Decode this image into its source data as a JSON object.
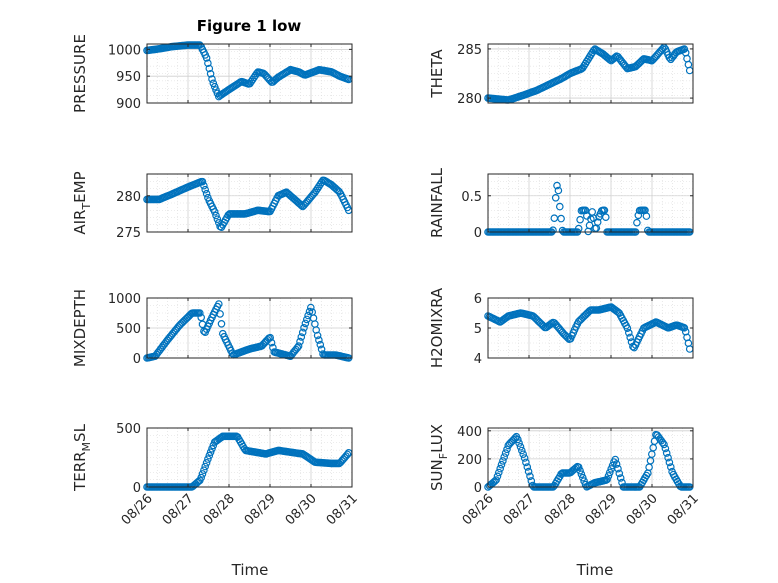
{
  "figure": {
    "title": "Figure 1 low",
    "xlabel": "Time",
    "x_tick_labels": [
      "08/26",
      "08/27",
      "08/28",
      "08/29",
      "08/30",
      "08/31"
    ],
    "marker_color": "#0072bd",
    "axes_color": "#262626",
    "grid_color": "#cfcfcf"
  },
  "chart_data": [
    {
      "type": "scatter",
      "name": "pressure",
      "ylabel": "PRESSURE",
      "ylabel_sub": "",
      "xlim": [
        0,
        5
      ],
      "ylim": [
        900,
        1010
      ],
      "yticks": [
        900,
        950,
        1000
      ],
      "x_start": 0,
      "x_end": 4.92,
      "knots": [
        [
          0,
          998
        ],
        [
          0.3,
          1001
        ],
        [
          0.6,
          1005
        ],
        [
          1.0,
          1008
        ],
        [
          1.3,
          1008
        ],
        [
          1.45,
          985
        ],
        [
          1.6,
          940
        ],
        [
          1.75,
          912
        ],
        [
          1.9,
          920
        ],
        [
          2.1,
          930
        ],
        [
          2.3,
          940
        ],
        [
          2.5,
          935
        ],
        [
          2.7,
          958
        ],
        [
          2.85,
          955
        ],
        [
          3.05,
          938
        ],
        [
          3.2,
          948
        ],
        [
          3.5,
          962
        ],
        [
          3.7,
          958
        ],
        [
          3.85,
          952
        ],
        [
          4.2,
          962
        ],
        [
          4.5,
          958
        ],
        [
          4.7,
          950
        ],
        [
          4.92,
          944
        ]
      ]
    },
    {
      "type": "scatter",
      "name": "theta",
      "ylabel": "THETA",
      "ylabel_sub": "",
      "xlim": [
        0,
        5
      ],
      "ylim": [
        279.5,
        285.5
      ],
      "yticks": [
        280,
        285
      ],
      "x_start": 0,
      "x_end": 4.92,
      "knots": [
        [
          0,
          280.0
        ],
        [
          0.5,
          279.8
        ],
        [
          0.8,
          280.2
        ],
        [
          1.2,
          280.8
        ],
        [
          1.8,
          282.0
        ],
        [
          2.0,
          282.5
        ],
        [
          2.3,
          283.0
        ],
        [
          2.6,
          285.0
        ],
        [
          2.8,
          284.5
        ],
        [
          3.0,
          283.8
        ],
        [
          3.15,
          284.3
        ],
        [
          3.4,
          283.0
        ],
        [
          3.6,
          283.2
        ],
        [
          3.8,
          284.0
        ],
        [
          4.0,
          283.8
        ],
        [
          4.3,
          285.2
        ],
        [
          4.45,
          283.9
        ],
        [
          4.6,
          284.7
        ],
        [
          4.8,
          285.0
        ],
        [
          4.92,
          282.8
        ]
      ]
    },
    {
      "type": "scatter",
      "name": "air_temp",
      "ylabel": "AIR",
      "ylabel_sub": "T",
      "ylabel_tail": "EMP",
      "xlim": [
        0,
        5
      ],
      "ylim": [
        275,
        283
      ],
      "yticks": [
        275,
        280
      ],
      "x_start": 0,
      "x_end": 4.92,
      "knots": [
        [
          0,
          279.5
        ],
        [
          0.3,
          279.5
        ],
        [
          0.6,
          280.2
        ],
        [
          1.0,
          281.2
        ],
        [
          1.35,
          282.0
        ],
        [
          1.5,
          279.5
        ],
        [
          1.65,
          277.8
        ],
        [
          1.8,
          275.5
        ],
        [
          2.0,
          277.5
        ],
        [
          2.4,
          277.5
        ],
        [
          2.7,
          278.0
        ],
        [
          3.0,
          277.8
        ],
        [
          3.2,
          280.0
        ],
        [
          3.4,
          280.5
        ],
        [
          3.6,
          279.5
        ],
        [
          3.8,
          278.5
        ],
        [
          4.1,
          280.5
        ],
        [
          4.3,
          282.2
        ],
        [
          4.5,
          281.5
        ],
        [
          4.7,
          280.5
        ],
        [
          4.92,
          278.0
        ]
      ]
    },
    {
      "type": "scatter",
      "name": "rainfall",
      "ylabel": "RAINFALL",
      "ylabel_sub": "",
      "xlim": [
        0,
        5
      ],
      "ylim": [
        0,
        0.8
      ],
      "yticks": [
        0,
        0.5
      ],
      "x_start": 0,
      "x_end": 4.92,
      "knots": [
        [
          0,
          0
        ],
        [
          1.58,
          0
        ],
        [
          1.62,
          0.2
        ],
        [
          1.66,
          0.55
        ],
        [
          1.7,
          0.7
        ],
        [
          1.74,
          0.4
        ],
        [
          1.78,
          0.2
        ],
        [
          1.82,
          0
        ],
        [
          2.2,
          0
        ],
        [
          2.24,
          0.15
        ],
        [
          2.28,
          0.3
        ],
        [
          2.4,
          0.3
        ],
        [
          2.44,
          0
        ],
        [
          2.5,
          0.15
        ],
        [
          2.55,
          0.3
        ],
        [
          2.62,
          0
        ],
        [
          2.7,
          0.2
        ],
        [
          2.78,
          0.3
        ],
        [
          2.86,
          0.3
        ],
        [
          2.9,
          0
        ],
        [
          3.6,
          0
        ],
        [
          3.65,
          0.2
        ],
        [
          3.7,
          0.3
        ],
        [
          3.85,
          0.3
        ],
        [
          3.9,
          0
        ],
        [
          4.92,
          0
        ]
      ]
    },
    {
      "type": "scatter",
      "name": "mixdepth",
      "ylabel": "MIXDEPTH",
      "ylabel_sub": "",
      "xlim": [
        0,
        5
      ],
      "ylim": [
        0,
        1000
      ],
      "yticks": [
        0,
        500,
        1000
      ],
      "x_start": 0,
      "x_end": 4.92,
      "knots": [
        [
          0,
          0
        ],
        [
          0.2,
          30
        ],
        [
          0.5,
          300
        ],
        [
          0.8,
          550
        ],
        [
          1.1,
          750
        ],
        [
          1.3,
          750
        ],
        [
          1.4,
          400
        ],
        [
          1.6,
          700
        ],
        [
          1.75,
          900
        ],
        [
          1.85,
          400
        ],
        [
          2.1,
          50
        ],
        [
          2.5,
          150
        ],
        [
          2.8,
          200
        ],
        [
          3.0,
          350
        ],
        [
          3.1,
          100
        ],
        [
          3.5,
          30
        ],
        [
          3.7,
          200
        ],
        [
          3.85,
          550
        ],
        [
          4.0,
          850
        ],
        [
          4.15,
          400
        ],
        [
          4.3,
          50
        ],
        [
          4.6,
          50
        ],
        [
          4.92,
          0
        ]
      ]
    },
    {
      "type": "scatter",
      "name": "h2omixra",
      "ylabel": "H2OMIXRA",
      "ylabel_sub": "",
      "xlim": [
        0,
        5
      ],
      "ylim": [
        4,
        6
      ],
      "yticks": [
        4,
        5,
        6
      ],
      "x_start": 0,
      "x_end": 4.92,
      "knots": [
        [
          0,
          5.4
        ],
        [
          0.3,
          5.2
        ],
        [
          0.5,
          5.4
        ],
        [
          0.8,
          5.5
        ],
        [
          1.1,
          5.4
        ],
        [
          1.4,
          5.0
        ],
        [
          1.6,
          5.2
        ],
        [
          1.85,
          4.8
        ],
        [
          2.0,
          4.6
        ],
        [
          2.2,
          5.2
        ],
        [
          2.5,
          5.6
        ],
        [
          2.7,
          5.6
        ],
        [
          3.0,
          5.7
        ],
        [
          3.2,
          5.5
        ],
        [
          3.4,
          5.0
        ],
        [
          3.55,
          4.3
        ],
        [
          3.8,
          5.0
        ],
        [
          4.1,
          5.2
        ],
        [
          4.4,
          5.0
        ],
        [
          4.6,
          5.1
        ],
        [
          4.8,
          5.0
        ],
        [
          4.92,
          4.3
        ]
      ]
    },
    {
      "type": "scatter",
      "name": "terr_msl",
      "ylabel": "TERR",
      "ylabel_sub": "M",
      "ylabel_tail": "SL",
      "xlim": [
        0,
        5
      ],
      "ylim": [
        0,
        500
      ],
      "yticks": [
        0,
        500
      ],
      "x_start": 0,
      "x_end": 4.92,
      "knots": [
        [
          0,
          0
        ],
        [
          1.1,
          0
        ],
        [
          1.3,
          60
        ],
        [
          1.5,
          250
        ],
        [
          1.65,
          380
        ],
        [
          1.85,
          430
        ],
        [
          2.2,
          430
        ],
        [
          2.4,
          310
        ],
        [
          2.9,
          280
        ],
        [
          3.2,
          310
        ],
        [
          3.8,
          280
        ],
        [
          4.1,
          210
        ],
        [
          4.5,
          200
        ],
        [
          4.7,
          200
        ],
        [
          4.92,
          290
        ]
      ]
    },
    {
      "type": "scatter",
      "name": "sun_flux",
      "ylabel": "SUN",
      "ylabel_sub": "F",
      "ylabel_tail": "LUX",
      "xlim": [
        0,
        5
      ],
      "ylim": [
        0,
        420
      ],
      "yticks": [
        0,
        200,
        400
      ],
      "x_start": 0,
      "x_end": 4.92,
      "knots": [
        [
          0,
          0
        ],
        [
          0.2,
          50
        ],
        [
          0.5,
          300
        ],
        [
          0.7,
          360
        ],
        [
          0.9,
          200
        ],
        [
          1.1,
          0
        ],
        [
          1.6,
          0
        ],
        [
          1.8,
          100
        ],
        [
          2.0,
          100
        ],
        [
          2.2,
          150
        ],
        [
          2.4,
          0
        ],
        [
          2.6,
          30
        ],
        [
          2.9,
          50
        ],
        [
          3.1,
          200
        ],
        [
          3.3,
          0
        ],
        [
          3.7,
          0
        ],
        [
          3.9,
          100
        ],
        [
          4.1,
          380
        ],
        [
          4.3,
          300
        ],
        [
          4.5,
          100
        ],
        [
          4.7,
          0
        ],
        [
          4.92,
          0
        ]
      ]
    }
  ]
}
